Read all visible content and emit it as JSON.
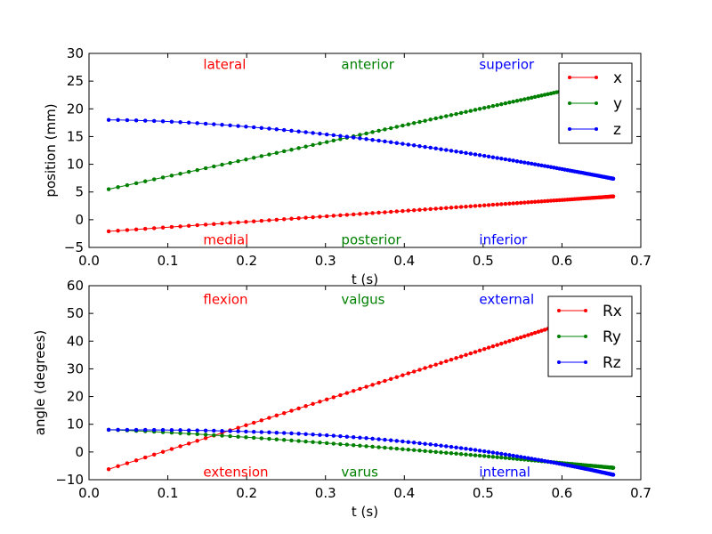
{
  "chart_data": [
    {
      "type": "line",
      "xlabel": "t (s)",
      "ylabel": "position (mm)",
      "xlim": [
        0.0,
        0.7
      ],
      "ylim": [
        -5,
        30
      ],
      "xticks": [
        "0.0",
        "0.1",
        "0.2",
        "0.3",
        "0.4",
        "0.5",
        "0.6",
        "0.7"
      ],
      "yticks": [
        "−5",
        "0",
        "5",
        "10",
        "15",
        "20",
        "25",
        "30"
      ],
      "grid": false,
      "legend_position": "top-right",
      "annotations": [
        {
          "text": "lateral",
          "color": "#ff0000",
          "x": 0.145,
          "y": 28
        },
        {
          "text": "anterior",
          "color": "#008000",
          "x": 0.32,
          "y": 28
        },
        {
          "text": "superior",
          "color": "#0000ff",
          "x": 0.495,
          "y": 28
        },
        {
          "text": "medial",
          "color": "#ff0000",
          "x": 0.145,
          "y": -3.6
        },
        {
          "text": "posterior",
          "color": "#008000",
          "x": 0.32,
          "y": -3.6
        },
        {
          "text": "inferior",
          "color": "#0000ff",
          "x": 0.495,
          "y": -3.6
        }
      ],
      "series": [
        {
          "name": "x",
          "color": "#ff0000",
          "start": [
            0.025,
            -2.1
          ],
          "end": [
            0.665,
            4.2
          ]
        },
        {
          "name": "y",
          "color": "#008000",
          "start": [
            0.025,
            5.5
          ],
          "end": [
            0.665,
            25.2
          ]
        },
        {
          "name": "z",
          "color": "#0000ff",
          "start": [
            0.025,
            18.0
          ],
          "end": [
            0.665,
            7.4
          ],
          "mid": 0.6
        }
      ]
    },
    {
      "type": "line",
      "xlabel": "t (s)",
      "ylabel": "angle (degrees)",
      "xlim": [
        0.0,
        0.7
      ],
      "ylim": [
        -10,
        60
      ],
      "xticks": [
        "0.0",
        "0.1",
        "0.2",
        "0.3",
        "0.4",
        "0.5",
        "0.6",
        "0.7"
      ],
      "yticks": [
        "−10",
        "0",
        "10",
        "20",
        "30",
        "40",
        "50",
        "60"
      ],
      "grid": false,
      "legend_position": "top-right",
      "annotations": [
        {
          "text": "flexion",
          "color": "#ff0000",
          "x": 0.145,
          "y": 55
        },
        {
          "text": "valgus",
          "color": "#008000",
          "x": 0.32,
          "y": 55
        },
        {
          "text": "external",
          "color": "#0000ff",
          "x": 0.495,
          "y": 55
        },
        {
          "text": "extension",
          "color": "#ff0000",
          "x": 0.145,
          "y": -7.2
        },
        {
          "text": "varus",
          "color": "#008000",
          "x": 0.32,
          "y": -7.2
        },
        {
          "text": "internal",
          "color": "#0000ff",
          "x": 0.495,
          "y": -7.2
        }
      ],
      "series": [
        {
          "name": "Rx",
          "color": "#ff0000",
          "start": [
            0.025,
            -6.2
          ],
          "end": [
            0.665,
            52.0
          ]
        },
        {
          "name": "Ry",
          "color": "#008000",
          "start": [
            0.025,
            8.0
          ],
          "end": [
            0.665,
            -5.7
          ],
          "mid": 0.8
        },
        {
          "name": "Rz",
          "color": "#0000ff",
          "start": [
            0.025,
            8.0
          ],
          "end": [
            0.665,
            -8.2
          ],
          "mid": 0.4
        }
      ]
    }
  ]
}
